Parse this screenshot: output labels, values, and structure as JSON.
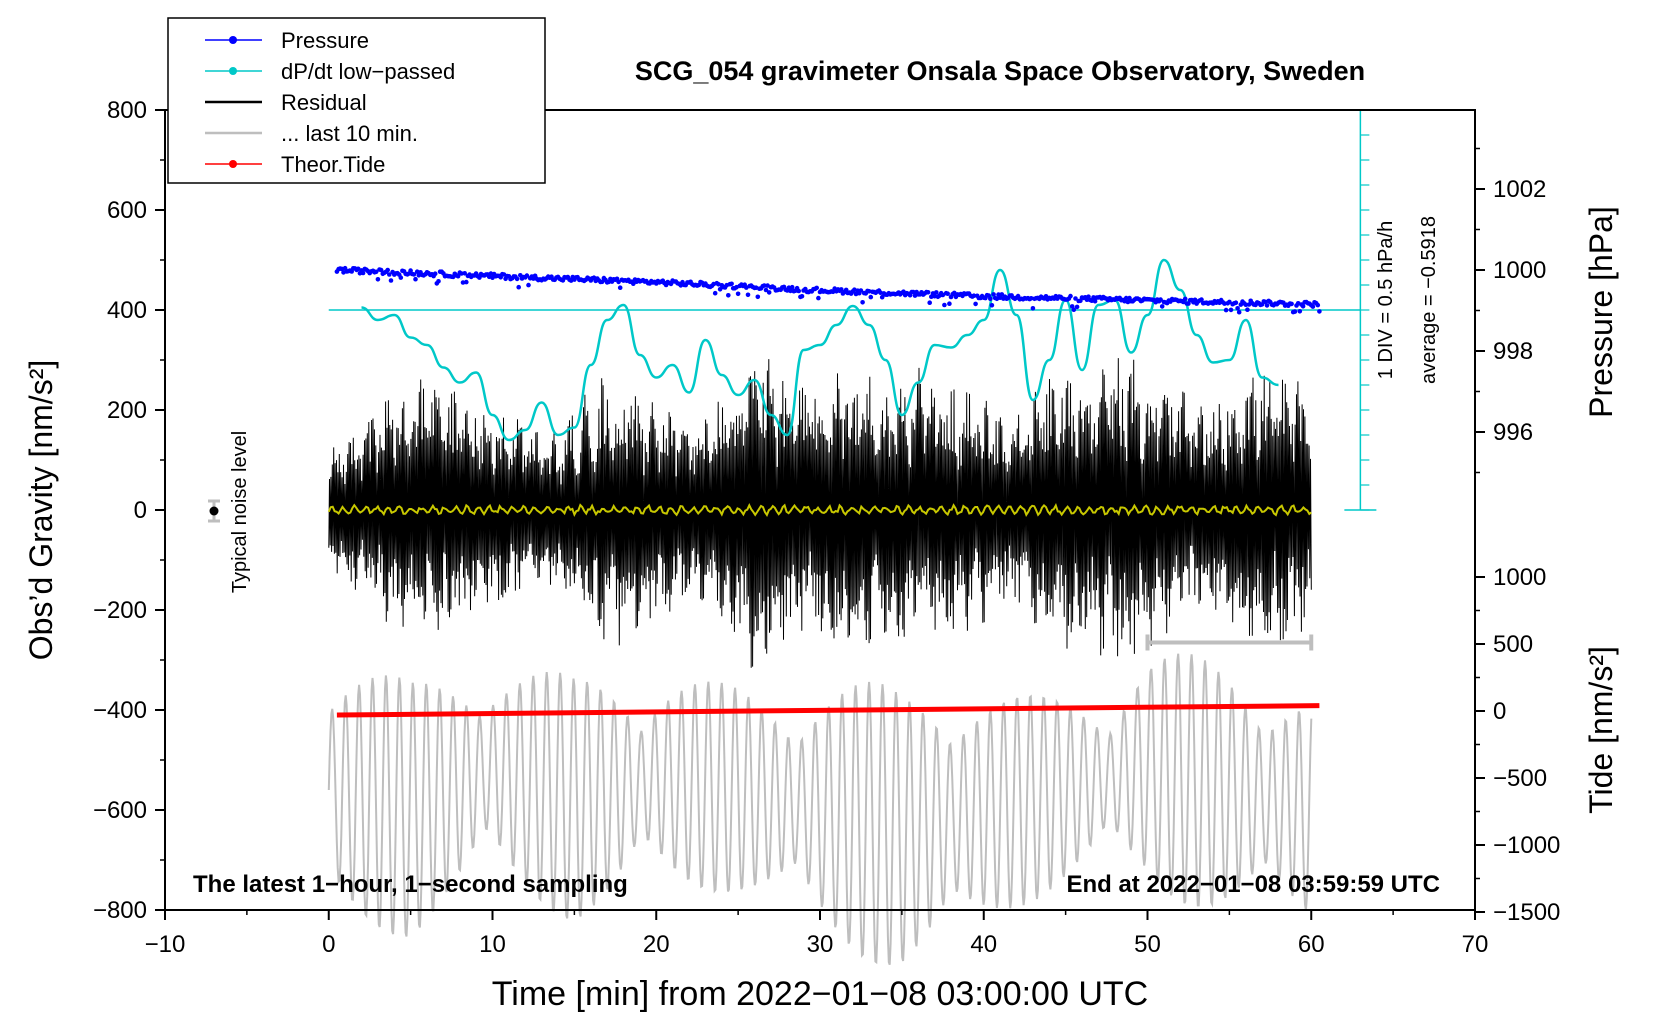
{
  "chart_data": {
    "type": "line",
    "title": "SCG_054 gravimeter Onsala Space Observatory, Sweden",
    "xlabel": "Time [min] from 2022−01−08 03:00:00 UTC",
    "ylabel": "Obs’d Gravity [nm/s²]",
    "y2label": "Pressure [hPa]",
    "y3label": "Tide [nm/s²]",
    "xlim": [
      -10,
      70
    ],
    "ylim": [
      -800,
      800
    ],
    "pressure_ylim": [
      996,
      1002
    ],
    "tide_ylim": [
      -1500,
      1000
    ],
    "x_ticks": [
      "−10",
      "0",
      "10",
      "20",
      "30",
      "40",
      "50",
      "60",
      "70"
    ],
    "y_ticks": [
      "800",
      "600",
      "400",
      "200",
      "0",
      "−200",
      "−400",
      "−600",
      "−800"
    ],
    "pressure_ticks": [
      "1002",
      "1000",
      "998",
      "996"
    ],
    "tide_ticks": [
      "1000",
      "500",
      "0",
      "−500",
      "−1000",
      "−1500"
    ],
    "legend": [
      {
        "label": "Pressure",
        "color": "#0000ff",
        "marker": true
      },
      {
        "label": "dP/dt low−passed",
        "color": "#00c8c8",
        "marker": true
      },
      {
        "label": "Residual",
        "color": "#000000",
        "marker": false
      },
      {
        "label": "... last 10 min.",
        "color": "#bebebe",
        "marker": false
      },
      {
        "label": "Theor.Tide",
        "color": "#ff0000",
        "marker": true
      }
    ],
    "legend_position": "top-left",
    "annotations": {
      "noise": "Typical noise level",
      "div": "1 DIV = 0.5 hPa/h",
      "average": "average = −0.5918",
      "bottom_left": "The latest 1−hour, 1−second sampling",
      "bottom_right": "End at 2022−01−08 03:59:59 UTC"
    },
    "series": [
      {
        "name": "Pressure",
        "axis": "pressure_hPa",
        "x": [
          0.5,
          10,
          20,
          30,
          40,
          50,
          60.5
        ],
        "values": [
          1000.0,
          999.85,
          999.7,
          999.5,
          999.35,
          999.25,
          999.15
        ]
      },
      {
        "name": "dP/dt low-passed",
        "axis": "gravity_equiv",
        "x": [
          2,
          3,
          4,
          5,
          6,
          7,
          8,
          9,
          10,
          11,
          12,
          13,
          14,
          15,
          16,
          17,
          18,
          19,
          20,
          21,
          22,
          23,
          24,
          25,
          26,
          27,
          28,
          29,
          30,
          31,
          32,
          33,
          34,
          35,
          36,
          37,
          38,
          39,
          40,
          41,
          42,
          43,
          44,
          45,
          46,
          47,
          48,
          49,
          50,
          51,
          52,
          53,
          54,
          55,
          56,
          57,
          58
        ],
        "values": [
          405,
          380,
          390,
          345,
          330,
          285,
          255,
          275,
          190,
          140,
          160,
          215,
          150,
          165,
          290,
          380,
          410,
          310,
          265,
          290,
          235,
          340,
          270,
          230,
          260,
          190,
          150,
          320,
          330,
          370,
          408,
          370,
          300,
          190,
          255,
          330,
          325,
          350,
          380,
          480,
          390,
          220,
          300,
          420,
          280,
          410,
          420,
          315,
          390,
          500,
          440,
          350,
          295,
          300,
          380,
          265,
          250
        ]
      },
      {
        "name": "Theor.Tide",
        "axis": "tide_nm_s2",
        "x": [
          0.5,
          60.5
        ],
        "values": [
          -30,
          40
        ]
      },
      {
        "name": "Residual envelope",
        "axis": "gravity",
        "x": [
          0,
          2,
          4,
          6,
          8,
          10,
          12,
          14,
          16,
          18,
          20,
          22,
          24,
          26,
          28,
          30,
          32,
          34,
          36,
          38,
          40,
          42,
          44,
          46,
          48,
          50,
          52,
          54,
          56,
          58,
          60
        ],
        "values": [
          130,
          180,
          240,
          270,
          250,
          220,
          180,
          160,
          260,
          280,
          230,
          190,
          230,
          330,
          270,
          260,
          320,
          250,
          290,
          260,
          230,
          200,
          270,
          300,
          320,
          290,
          240,
          210,
          300,
          280,
          250
        ]
      },
      {
        "name": "Last 10 min (gray)",
        "axis": "gravity",
        "x": [
          0,
          5,
          10,
          15,
          20,
          25,
          30,
          35,
          40,
          45,
          50,
          55,
          60
        ],
        "values": [
          -560,
          -600,
          -520,
          -580,
          -540,
          -560,
          -600,
          -640,
          -600,
          -560,
          -520,
          -560,
          -600
        ]
      }
    ]
  }
}
